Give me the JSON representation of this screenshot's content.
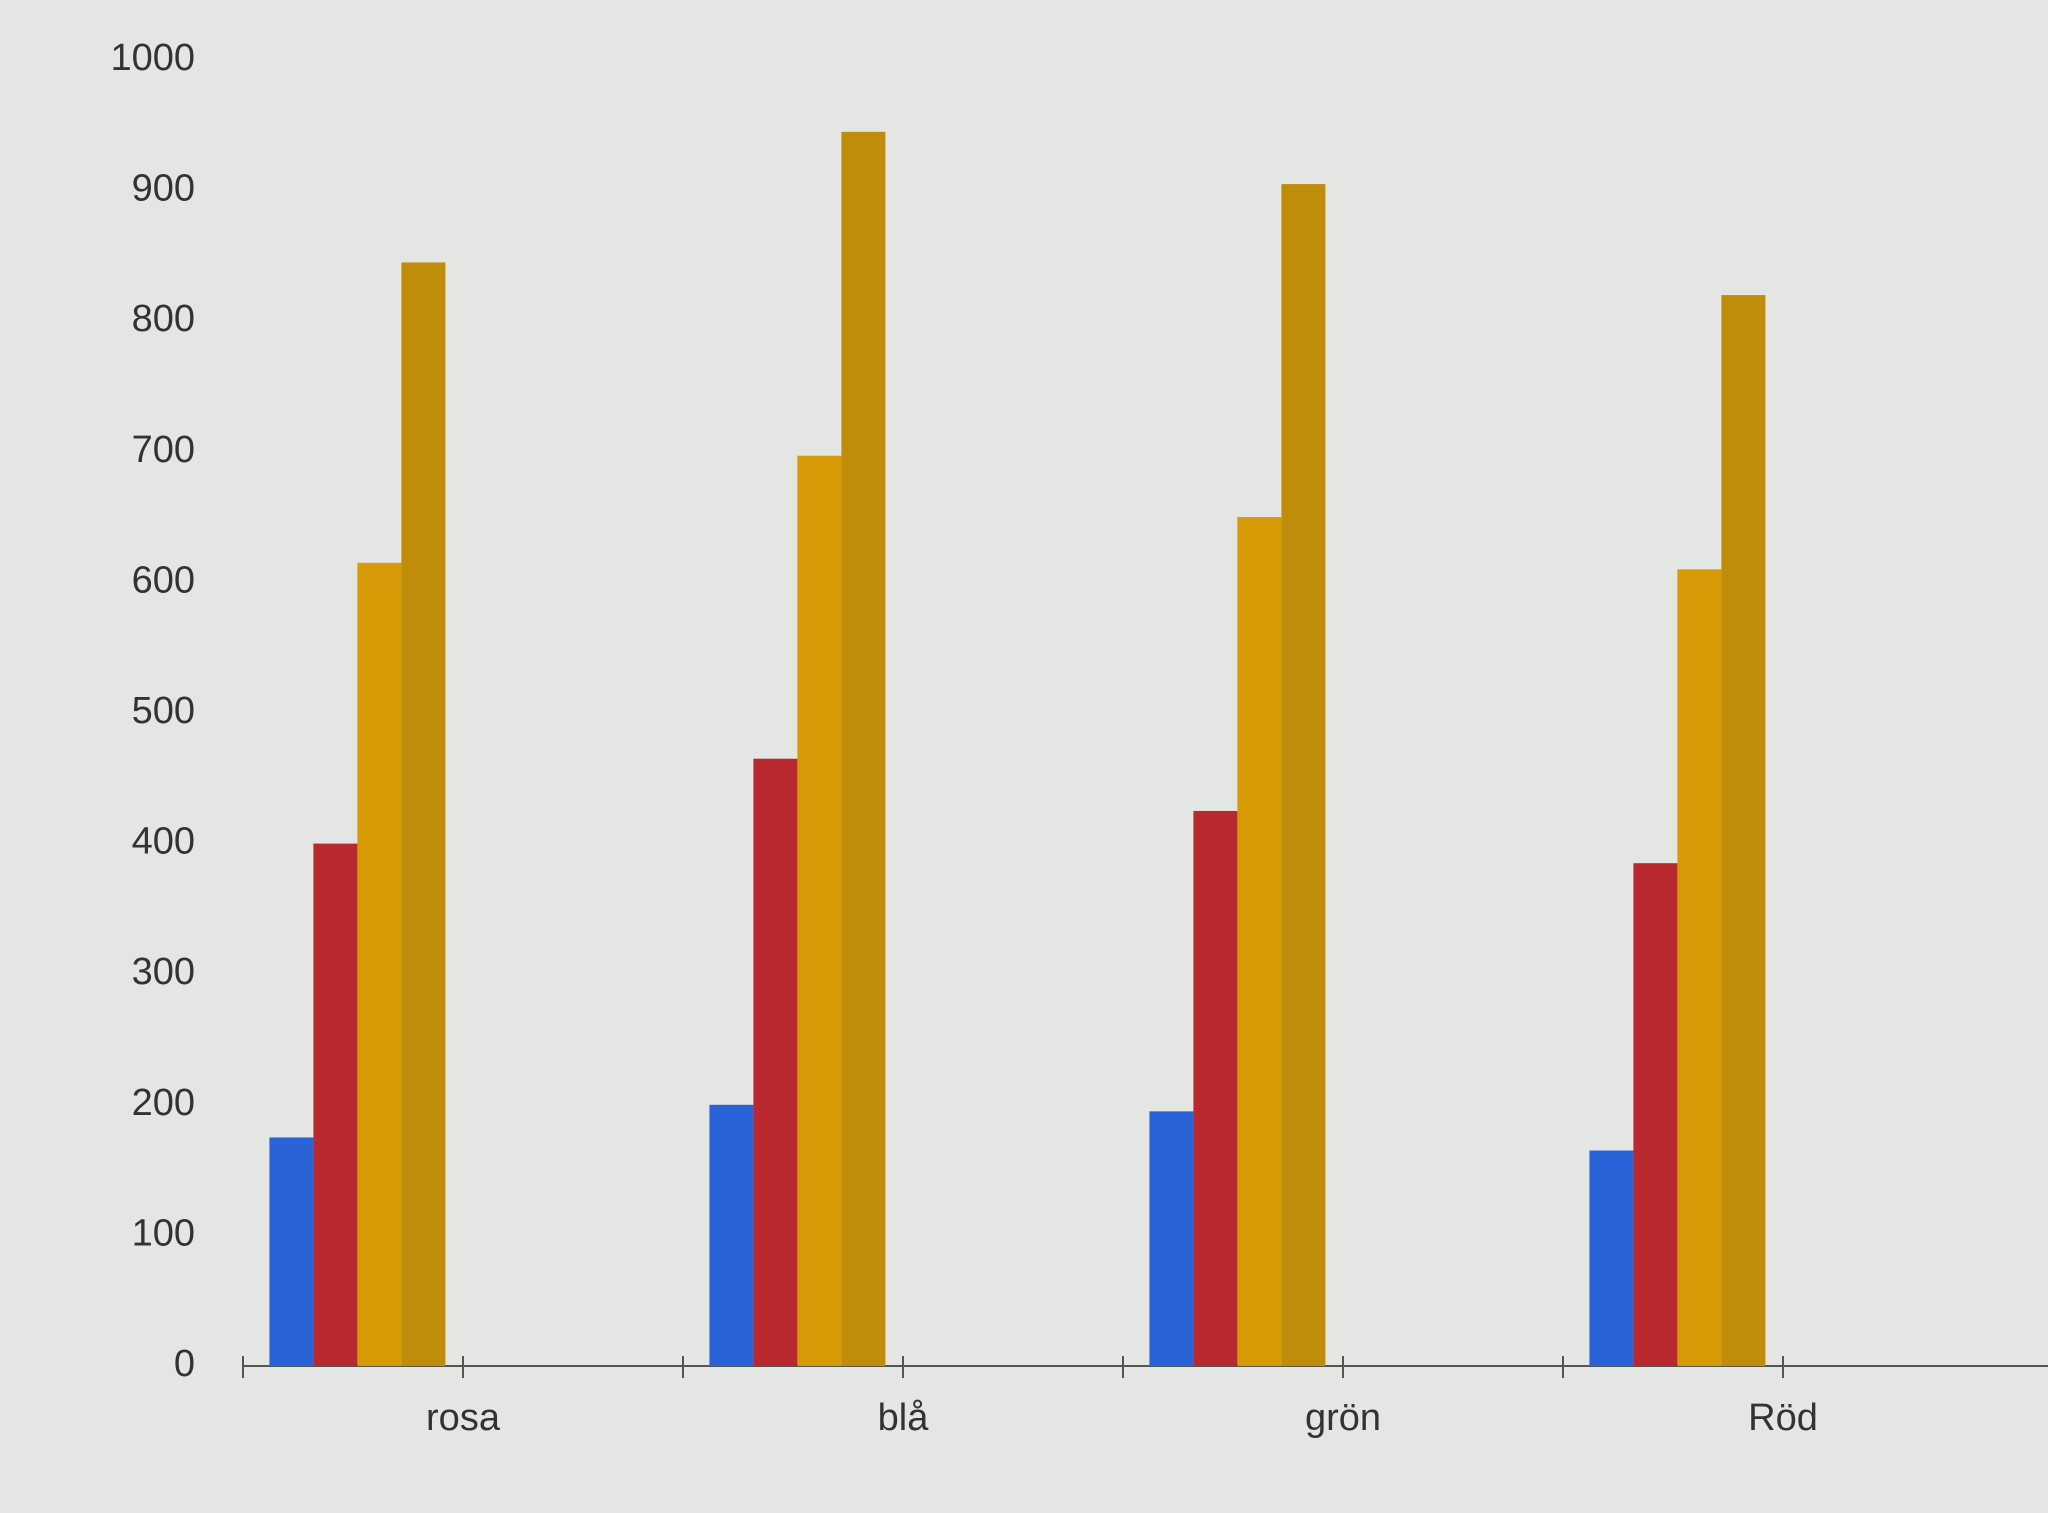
{
  "chart_data": {
    "type": "bar",
    "categories": [
      "rosa",
      "blå",
      "grön",
      "Röd"
    ],
    "series": [
      {
        "color": "#2a62d8",
        "values": [
          175,
          200,
          195,
          165
        ]
      },
      {
        "color": "#b8282e",
        "values": [
          400,
          465,
          425,
          385
        ]
      },
      {
        "color": "#d69a06",
        "values": [
          615,
          697,
          650,
          610
        ]
      },
      {
        "color": "#c08d0a",
        "values": [
          845,
          945,
          905,
          820
        ]
      }
    ],
    "ylim": [
      0,
      1000
    ],
    "yticks": [
      0,
      100,
      200,
      300,
      400,
      500,
      600,
      700,
      800,
      900,
      1000
    ],
    "grid": false
  }
}
